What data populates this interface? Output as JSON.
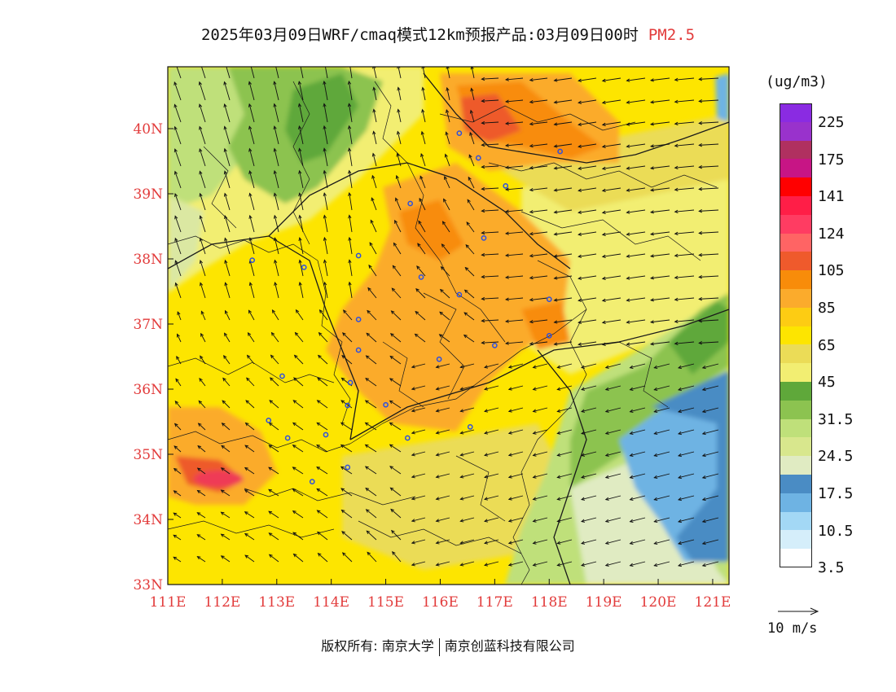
{
  "title": {
    "main": "2025年03月09日WRF/cmaq模式12km预报产品:03月09日00时",
    "pollutant": "PM2.5"
  },
  "map": {
    "lon_labels": [
      "111E",
      "112E",
      "113E",
      "114E",
      "115E",
      "116E",
      "117E",
      "118E",
      "119E",
      "120E",
      "121E"
    ],
    "lat_labels": [
      "33N",
      "34N",
      "35N",
      "36N",
      "37N",
      "38N",
      "39N",
      "40N"
    ],
    "lon_range": [
      111,
      121.3
    ],
    "lat_range": [
      33,
      40.95
    ],
    "city_markers": [
      [
        116.35,
        39.93
      ],
      [
        116.7,
        39.55
      ],
      [
        118.2,
        39.65
      ],
      [
        117.2,
        39.12
      ],
      [
        115.45,
        38.85
      ],
      [
        116.8,
        38.32
      ],
      [
        114.5,
        38.05
      ],
      [
        113.5,
        37.87
      ],
      [
        112.55,
        37.98
      ],
      [
        115.65,
        37.72
      ],
      [
        116.35,
        37.45
      ],
      [
        118.0,
        37.38
      ],
      [
        114.5,
        37.07
      ],
      [
        114.5,
        36.6
      ],
      [
        117.0,
        36.67
      ],
      [
        118.0,
        36.82
      ],
      [
        115.98,
        36.46
      ],
      [
        113.1,
        36.2
      ],
      [
        114.35,
        36.1
      ],
      [
        114.3,
        35.75
      ],
      [
        115.0,
        35.76
      ],
      [
        112.85,
        35.52
      ],
      [
        113.2,
        35.25
      ],
      [
        113.9,
        35.3
      ],
      [
        115.4,
        35.25
      ],
      [
        116.55,
        35.42
      ],
      [
        114.3,
        34.8
      ],
      [
        113.65,
        34.58
      ]
    ]
  },
  "colors": {
    "bg": "#f2ee72",
    "yellow": "#fde500",
    "light_yellow": "#ebdc57",
    "pale_yellow": "#f2ee72",
    "orange": "#fbab2c",
    "dark_orange": "#f88c0a",
    "red_orange": "#ee5a2c",
    "pink": "#ef3b57",
    "green_dark": "#5fa83a",
    "green_mid": "#8cc350",
    "green_light": "#bfe07a",
    "green_pale": "#dbe8a2",
    "very_pale": "#e0ebc2",
    "blue_dark": "#4a8cc4",
    "blue_mid": "#6eb3e3",
    "blue_light": "#a3d8f5"
  },
  "legend": {
    "unit": "(ug/m3)",
    "colors": [
      "#8a2be2",
      "#9932cc",
      "#b03060",
      "#c71585",
      "#ff0000",
      "#ff1e47",
      "#ff3c62",
      "#ff6464",
      "#ef5a2c",
      "#f88c0a",
      "#fbab2c",
      "#fdcc13",
      "#fde500",
      "#ebdc57",
      "#f2ee72",
      "#5fa83a",
      "#8cc350",
      "#bfe07a",
      "#d8e78d",
      "#e0ebc2",
      "#4a8cc4",
      "#6eb3e3",
      "#a3d8f5",
      "#d5eefa",
      "#ffffff"
    ],
    "labels": [
      "225",
      "175",
      "141",
      "124",
      "105",
      "85",
      "65",
      "45",
      "31.5",
      "24.5",
      "17.5",
      "10.5",
      "3.5"
    ],
    "wind_ref_label": "10 m/s"
  },
  "footer": {
    "copyright": "版权所有: 南京大学",
    "company": "南京创蓝科技有限公司"
  }
}
